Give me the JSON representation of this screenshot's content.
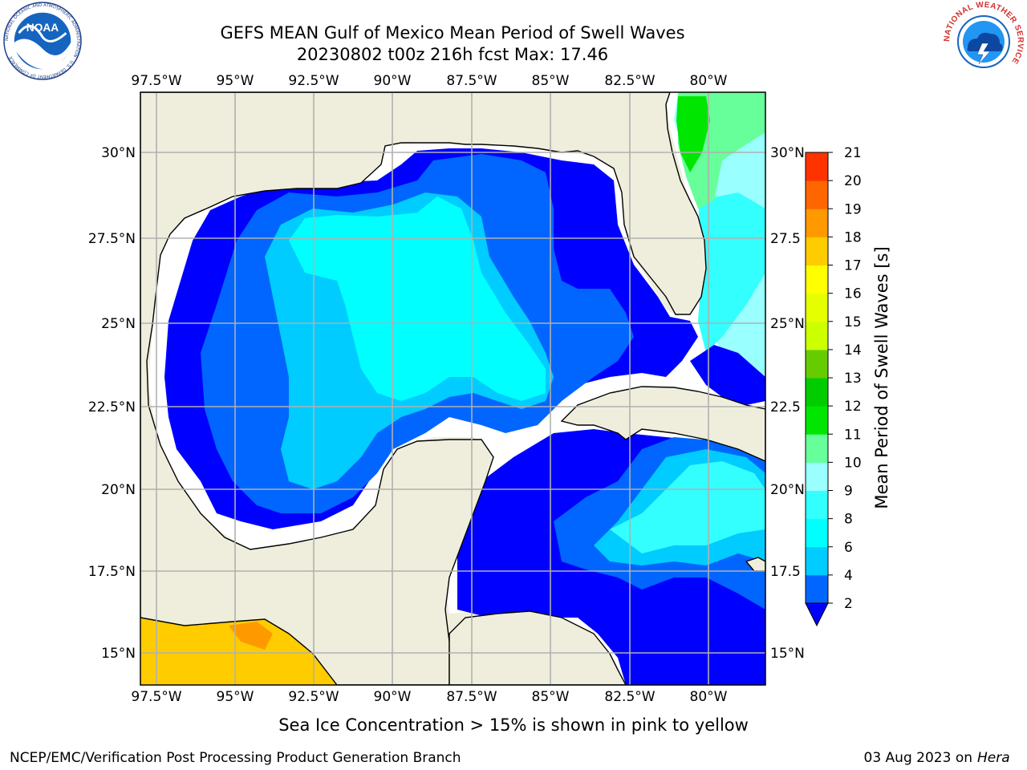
{
  "title": {
    "line1": "GEFS MEAN Gulf of Mexico Mean Period of Swell Waves",
    "line2": "20230802 t00z 216h fcst   Max: 17.46"
  },
  "logos": {
    "noaa": {
      "text": "NOAA",
      "ring_text": "NATIONAL OCEANIC AND ATMOSPHERIC ADMINISTRATION · U.S. DEPARTMENT OF COMMERCE"
    },
    "nws": {
      "ring_text": "NATIONAL WEATHER SERVICE"
    }
  },
  "map": {
    "projection": "lat-lon",
    "lon_range": [
      -98,
      -78.2
    ],
    "lat_range": [
      14.1,
      31.7
    ],
    "gridlines": true,
    "lon_ticks": [
      "97.5°W",
      "95°W",
      "92.5°W",
      "90°W",
      "87.5°W",
      "85°W",
      "82.5°W",
      "80°W"
    ],
    "lat_ticks_left": [
      "30°N",
      "27.5°N",
      "25°N",
      "22.5°N",
      "20°N",
      "17.5°N",
      "15°N"
    ],
    "lat_ticks_right": [
      "30°N",
      "27.5",
      "25°N",
      "22.5",
      "20°N",
      "17.5",
      "15°N"
    ],
    "land_color": "#efeedc",
    "no_data_color": "#ffffff"
  },
  "colorbar": {
    "label": "Mean Period of Swell Waves [s]",
    "tick_labels": [
      "2",
      "4",
      "6",
      "8",
      "9",
      "10",
      "11",
      "12",
      "13",
      "14",
      "15",
      "16",
      "17",
      "18",
      "19",
      "20",
      "21"
    ],
    "levels": [
      2,
      4,
      6,
      8,
      9,
      10,
      11,
      12,
      13,
      14,
      15,
      16,
      17,
      18,
      19,
      20,
      21
    ],
    "colors": [
      "#0066ff",
      "#00ccff",
      "#00ffff",
      "#33ffff",
      "#99ffff",
      "#66ff99",
      "#00e600",
      "#00cc00",
      "#66cc00",
      "#ccff00",
      "#e6ff00",
      "#ffff00",
      "#ffcc00",
      "#ff9900",
      "#ff6600",
      "#ff3300",
      "#ff0000"
    ],
    "underflow_color": "#0000ff",
    "extend": "min"
  },
  "footer": {
    "note": "Sea Ice Concentration > 15% is shown in pink to yellow",
    "credit": "NCEP/EMC/Verification Post Processing Product Generation Branch",
    "date": "03 Aug 2023 on",
    "host": "Hera"
  }
}
